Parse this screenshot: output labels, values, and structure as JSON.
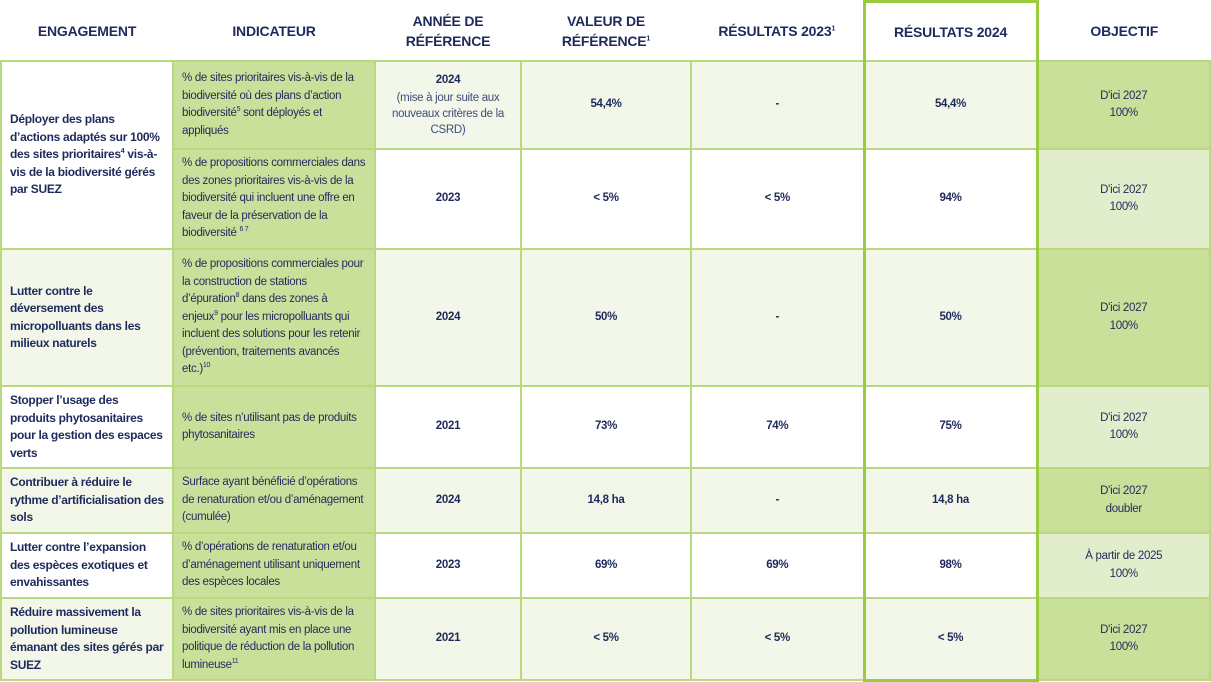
{
  "headers": {
    "engagement": "ENGAGEMENT",
    "indicateur": "INDICATEUR",
    "annee": "ANNÉE DE RÉFÉRENCE",
    "valeur": "VALEUR DE RÉFÉRENCE",
    "valeur_sup": "1",
    "res2023": "RÉSULTATS 2023",
    "res2023_sup": "1",
    "res2024": "RÉSULTATS 2024",
    "objectif": "OBJECTIF"
  },
  "rows": [
    {
      "engagement": [
        {
          "t": "Déployer des plans d’actions adaptés sur 100% des sites prioritaires"
        },
        {
          "s": "4"
        },
        {
          "t": " vis-à-vis de la biodiversité gérés par SUEZ"
        }
      ],
      "indicateur": [
        {
          "t": "% de sites prioritaires vis-à-vis de la biodiversité où des plans d’action biodiversité"
        },
        {
          "s": "5"
        },
        {
          "t": " sont déployés et appliqués"
        }
      ],
      "annee": "2024",
      "annee_note": "(mise à jour suite aux nouveaux critères de la CSRD)",
      "valeur": "54,4%",
      "res2023": "-",
      "res2024": "54,4%",
      "objectif": [
        "D'ici 2027",
        "100%"
      ],
      "light": true,
      "obj_dark": true
    },
    {
      "indicateur": [
        {
          "t": "% de propositions commerciales dans des zones prioritaires vis-à-vis de la biodiversité qui incluent une offre en faveur de la préservation de la biodiversité "
        },
        {
          "s": "6 7"
        }
      ],
      "annee": "2023",
      "valeur": "< 5%",
      "res2023": "< 5%",
      "res2024": "94%",
      "objectif": [
        "D'ici 2027",
        "100%"
      ],
      "light": false,
      "obj_dark": false
    },
    {
      "engagement": [
        {
          "t": "Lutter contre le déversement des micropolluants dans les milieux naturels"
        }
      ],
      "indicateur": [
        {
          "t": "% de propositions commerciales pour la construction de stations d’épuration"
        },
        {
          "s": "8"
        },
        {
          "t": " dans des zones à enjeux"
        },
        {
          "s": "9"
        },
        {
          "t": " pour les micropolluants qui incluent des solutions pour les retenir (prévention, traitements avancés etc.)"
        },
        {
          "s": "10"
        }
      ],
      "annee": "2024",
      "valeur": "50%",
      "res2023": "-",
      "res2024": "50%",
      "objectif": [
        "D'ici 2027",
        "100%"
      ],
      "light": true,
      "obj_dark": true
    },
    {
      "engagement": [
        {
          "t": "Stopper l’usage des produits phytosanitaires pour la gestion des espaces verts"
        }
      ],
      "indicateur": [
        {
          "t": "% de sites n’utilisant pas de produits phytosanitaires"
        }
      ],
      "annee": "2021",
      "valeur": "73%",
      "res2023": "74%",
      "res2024": "75%",
      "objectif": [
        "D'ici 2027",
        "100%"
      ],
      "light": false,
      "obj_dark": false
    },
    {
      "engagement": [
        {
          "t": "Contribuer à réduire le rythme d’artificialisation des sols"
        }
      ],
      "indicateur": [
        {
          "t": "Surface ayant bénéficié d’opérations de renaturation et/ou d’aménagement (cumulée)"
        }
      ],
      "annee": "2024",
      "valeur": "14,8 ha",
      "res2023": "-",
      "res2024": "14,8 ha",
      "objectif": [
        "D'ici 2027",
        "doubler"
      ],
      "light": true,
      "obj_dark": true
    },
    {
      "engagement": [
        {
          "t": "Lutter contre l’expansion des espèces exotiques et envahissantes"
        }
      ],
      "indicateur": [
        {
          "t": "% d’opérations de renaturation et/ou d’aménagement utilisant uniquement des espèces locales"
        }
      ],
      "annee": "2023",
      "valeur": "69%",
      "res2023": "69%",
      "res2024": "98%",
      "objectif": [
        "À partir de 2025",
        "100%"
      ],
      "light": false,
      "obj_dark": false
    },
    {
      "engagement": [
        {
          "t": "Réduire massivement la pollution lumineuse émanant des sites gérés par SUEZ"
        }
      ],
      "indicateur": [
        {
          "t": "% de sites prioritaires vis-à-vis de la biodiversité ayant mis en place une politique de réduction de la pollution lumineuse"
        },
        {
          "s": "11"
        }
      ],
      "annee": "2021",
      "valeur": "< 5%",
      "res2023": "< 5%",
      "res2024": "< 5%",
      "objectif": [
        "D'ici 2027",
        "100%"
      ],
      "light": true,
      "obj_dark": true
    }
  ],
  "colors": {
    "indicator_bg": "#c9e09b",
    "light_row": "#f2f7e9",
    "objective_light": "#e2edcb",
    "border": "#b9d97f",
    "highlight": "#9ccb3f",
    "text": "#1f2a5c"
  }
}
